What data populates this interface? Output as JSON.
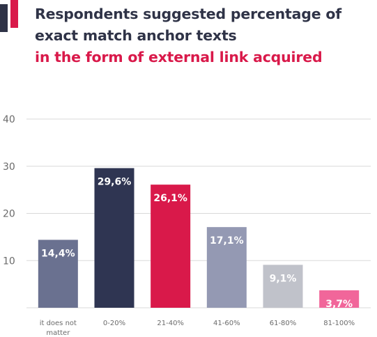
{
  "title": {
    "line1": "Respondents suggested percentage of",
    "line2": "exact match anchor texts",
    "line3": "in the form of external link acquired"
  },
  "colors": {
    "title_dark": "#2f3347",
    "title_accent": "#d9194a",
    "grid": "#d9d9d9",
    "axis_text": "#6b6b6b"
  },
  "chart_data": {
    "type": "bar",
    "categories": [
      "it does not matter",
      "0-20%",
      "21-40%",
      "41-60%",
      "61-80%",
      "81-100%"
    ],
    "category_lines": [
      [
        "it does not",
        "matter"
      ],
      [
        "0-20%"
      ],
      [
        "21-40%"
      ],
      [
        "41-60%"
      ],
      [
        "61-80%"
      ],
      [
        "81-100%"
      ]
    ],
    "values": [
      14.4,
      29.6,
      26.1,
      17.1,
      9.1,
      3.7
    ],
    "data_labels": [
      "14,4%",
      "29,6%",
      "26,1%",
      "17,1%",
      "9,1%",
      "3,7%"
    ],
    "bar_colors": [
      "#6a7190",
      "#2f3552",
      "#d9194a",
      "#9499b3",
      "#c0c2ca",
      "#f1669a"
    ],
    "yticks": [
      10,
      20,
      30,
      40
    ],
    "ylim": [
      0,
      40
    ],
    "y_scale": "linear",
    "grid": true,
    "xlabel": "",
    "ylabel": ""
  }
}
